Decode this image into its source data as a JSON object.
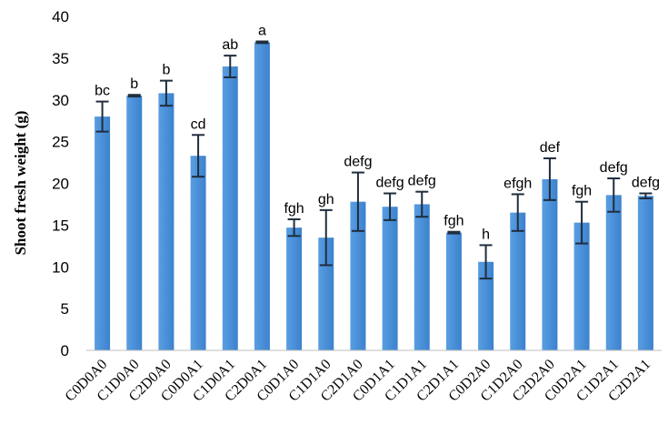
{
  "chart_data": {
    "type": "bar",
    "title": "",
    "xlabel": "",
    "ylabel": "Shoot fresh weight (g)",
    "ylim": [
      0,
      40
    ],
    "yticks": [
      0,
      5,
      10,
      15,
      20,
      25,
      30,
      35,
      40
    ],
    "grid": false,
    "legend": "none",
    "bar_color": "#4a90d9",
    "error_color": "#1f2d3d",
    "categories": [
      "C0D0A0",
      "C1D0A0",
      "C2D0A0",
      "C0D0A1",
      "C1D0A1",
      "C2D0A1",
      "C0D1A0",
      "C1D1A0",
      "C2D1A0",
      "C0D1A1",
      "C1D1A1",
      "C2D1A1",
      "C0D2A0",
      "C1D2A0",
      "C2D2A0",
      "C0D2A1",
      "C1D2A1",
      "C2D2A1"
    ],
    "values": [
      28.0,
      30.5,
      30.8,
      23.3,
      34.0,
      36.9,
      14.7,
      13.5,
      17.8,
      17.2,
      17.5,
      14.1,
      10.6,
      16.5,
      20.5,
      15.3,
      18.6,
      18.5
    ],
    "errors": [
      1.8,
      0.1,
      1.5,
      2.5,
      1.3,
      0.1,
      1.0,
      3.3,
      3.5,
      1.6,
      1.5,
      0.1,
      2.0,
      2.2,
      2.5,
      2.5,
      2.0,
      0.3
    ],
    "labels": [
      "bc",
      "b",
      "b",
      "cd",
      "ab",
      "a",
      "fgh",
      "gh",
      "defg",
      "defg",
      "defg",
      "fgh",
      "h",
      "efgh",
      "def",
      "fgh",
      "defg",
      "defg"
    ]
  }
}
